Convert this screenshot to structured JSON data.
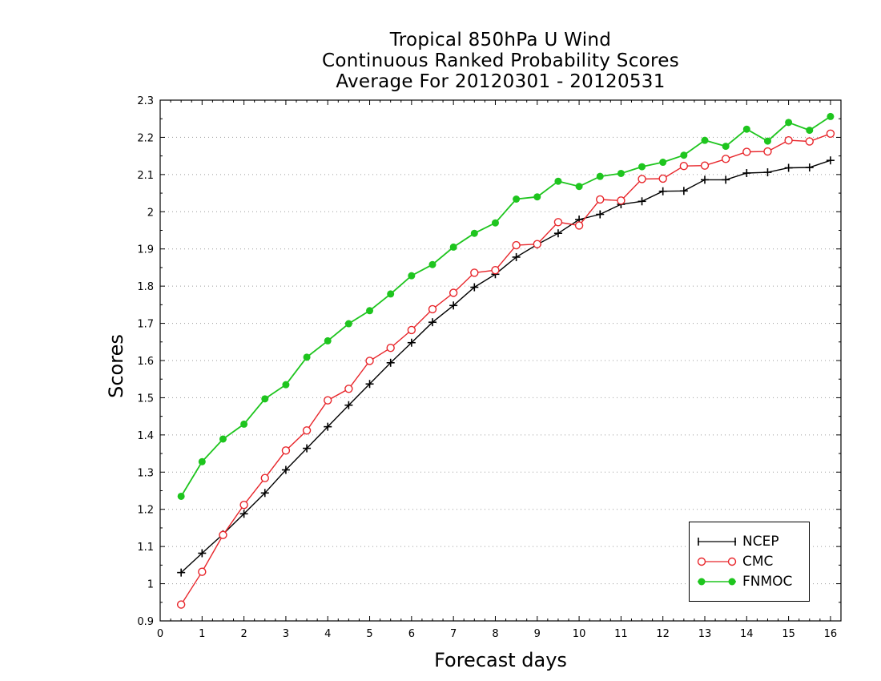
{
  "title": [
    "Tropical 850hPa U Wind",
    "Continuous Ranked Probability Scores",
    "Average For 20120301 - 20120531"
  ],
  "chart_data": {
    "type": "line",
    "title": "Tropical 850hPa U Wind / Continuous Ranked Probability Scores / Average For 20120301 - 20120531",
    "xlabel": "Forecast days",
    "ylabel": "Scores",
    "xlim": [
      0,
      16.25
    ],
    "ylim": [
      0.9,
      2.3
    ],
    "xticks": [
      0,
      1,
      2,
      3,
      4,
      5,
      6,
      7,
      8,
      9,
      10,
      11,
      12,
      13,
      14,
      15,
      16
    ],
    "yticks": [
      0.9,
      1,
      1.1,
      1.2,
      1.3,
      1.4,
      1.5,
      1.6,
      1.7,
      1.8,
      1.9,
      2,
      2.1,
      2.2,
      2.3
    ],
    "ytick_labels": [
      "0.9",
      "1",
      "1.1",
      "1.2",
      "1.3",
      "1.4",
      "1.5",
      "1.6",
      "1.7",
      "1.8",
      "1.9",
      "2",
      "2.1",
      "2.2",
      "2.3"
    ],
    "grid": "horizontal dotted",
    "legend_position": "bottom-right",
    "x": [
      0.5,
      1,
      1.5,
      2,
      2.5,
      3,
      3.5,
      4,
      4.5,
      5,
      5.5,
      6,
      6.5,
      7,
      7.5,
      8,
      8.5,
      9,
      9.5,
      10,
      10.5,
      11,
      11.5,
      12,
      12.5,
      13,
      13.5,
      14,
      14.5,
      15,
      15.5,
      16
    ],
    "series": [
      {
        "name": "NCEP",
        "color": "#000000",
        "marker": "plus",
        "values": [
          1.03,
          1.082,
          1.133,
          1.188,
          1.244,
          1.306,
          1.364,
          1.422,
          1.48,
          1.537,
          1.594,
          1.648,
          1.703,
          1.748,
          1.797,
          1.832,
          1.878,
          1.912,
          1.942,
          1.979,
          1.993,
          2.02,
          2.028,
          2.055,
          2.056,
          2.086,
          2.086,
          2.104,
          2.106,
          2.118,
          2.119,
          2.138
        ]
      },
      {
        "name": "CMC",
        "color": "#e8262b",
        "marker": "circle",
        "values": [
          0.944,
          1.032,
          1.131,
          1.212,
          1.284,
          1.358,
          1.412,
          1.493,
          1.524,
          1.599,
          1.634,
          1.682,
          1.738,
          1.782,
          1.836,
          1.843,
          1.91,
          1.913,
          1.972,
          1.963,
          2.033,
          2.03,
          2.088,
          2.089,
          2.123,
          2.124,
          2.142,
          2.161,
          2.162,
          2.192,
          2.189,
          2.21
        ]
      },
      {
        "name": "FNMOC",
        "color": "#1ec51e",
        "marker": "filled-circle",
        "values": [
          1.235,
          1.328,
          1.389,
          1.429,
          1.497,
          1.535,
          1.609,
          1.653,
          1.699,
          1.734,
          1.779,
          1.828,
          1.858,
          1.905,
          1.942,
          1.97,
          2.034,
          2.04,
          2.082,
          2.068,
          2.095,
          2.103,
          2.121,
          2.133,
          2.152,
          2.192,
          2.176,
          2.222,
          2.19,
          2.24,
          2.219,
          2.256
        ]
      }
    ]
  }
}
